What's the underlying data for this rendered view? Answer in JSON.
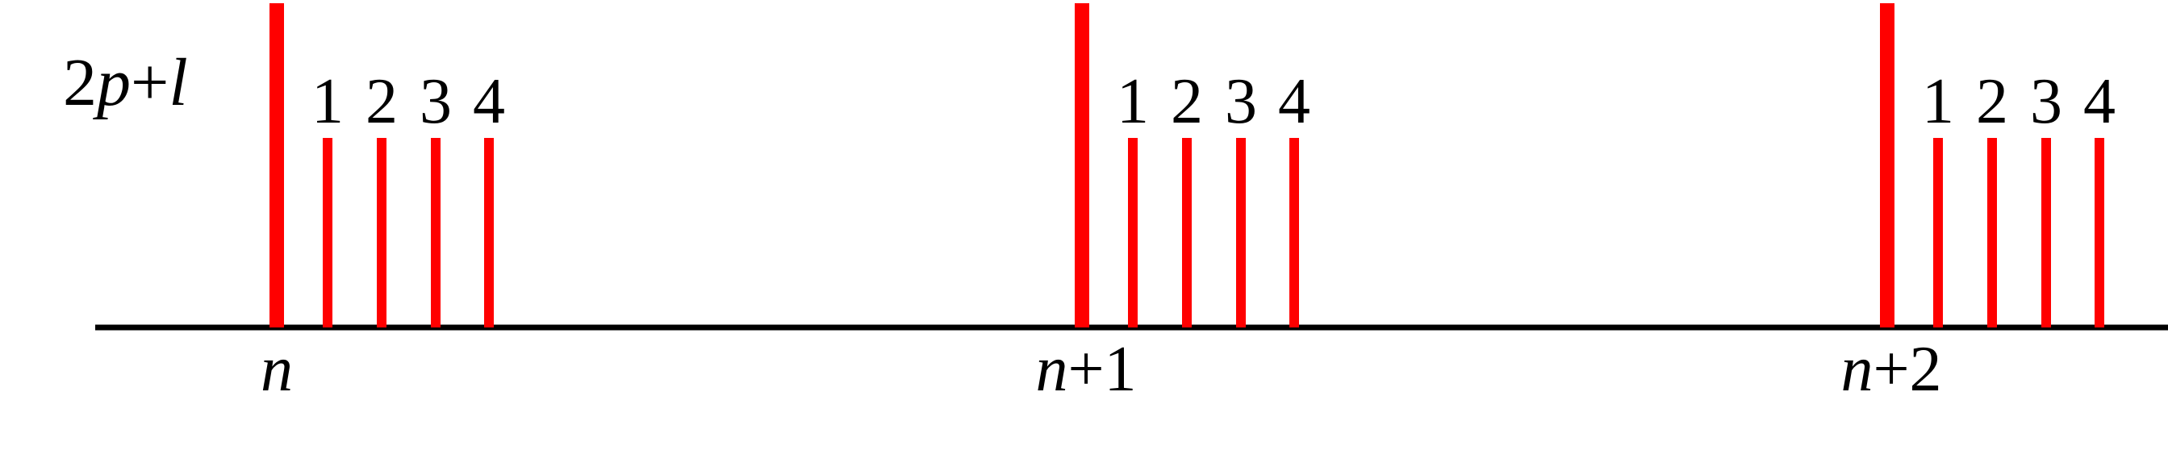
{
  "diagram": {
    "y_label": {
      "italic_a": "2",
      "p": "p",
      "plus": "+",
      "l": "l"
    },
    "mark_color": "#ff0000",
    "axis_color": "#000000",
    "groups": [
      {
        "name": "n",
        "label": {
          "var": "n",
          "suffix": ""
        },
        "sublabels": [
          "1",
          "2",
          "3",
          "4"
        ]
      },
      {
        "name": "n+1",
        "label": {
          "var": "n",
          "suffix": "+1"
        },
        "sublabels": [
          "1",
          "2",
          "3",
          "4"
        ]
      },
      {
        "name": "n+2",
        "label": {
          "var": "n",
          "suffix": "+2"
        },
        "sublabels": [
          "1",
          "2",
          "3",
          "4"
        ]
      }
    ]
  }
}
